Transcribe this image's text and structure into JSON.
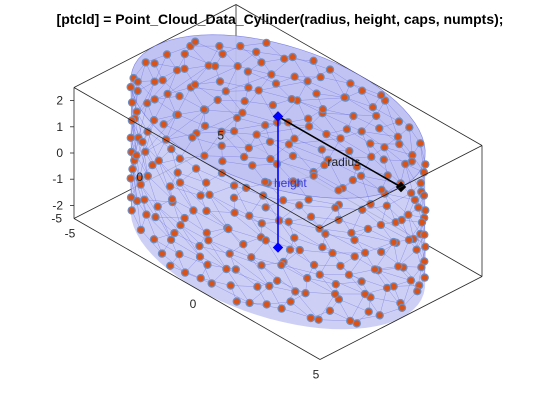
{
  "chart_data": {
    "type": "scatter3d",
    "title": "[ptcld] = Point_Cloud_Data_Cylinder(radius, height, caps, numpts);",
    "xlabel": "",
    "ylabel": "",
    "zlabel": "",
    "xlim": [
      -5,
      5
    ],
    "ylim": [
      -5,
      5
    ],
    "zlim": [
      -2.5,
      2.5
    ],
    "x_ticks": [
      "-5",
      "0",
      "5"
    ],
    "y_ticks": [
      "-5",
      "0",
      "5"
    ],
    "z_ticks": [
      "-2",
      "-1",
      "0",
      "1",
      "2"
    ],
    "grid": false,
    "box": true,
    "surface": {
      "shape": "cylinder",
      "radius": 5,
      "z_min": -2.5,
      "z_max": 2.5,
      "caps": true
    },
    "markers": {
      "count_approx": 300,
      "face_color": "#d95319",
      "edge_color": "#6b8ec7"
    },
    "annotations": [
      {
        "label": "radius",
        "from": [
          0,
          0,
          2.5
        ],
        "to": [
          5,
          0,
          2.5
        ]
      },
      {
        "label": "height",
        "from": [
          0,
          0,
          2.5
        ],
        "to": [
          0,
          0,
          -2.5
        ]
      }
    ],
    "view": {
      "azimuth_deg": -37.5,
      "elevation_deg": 30
    },
    "colors": {
      "surface_fill": "#c4c8f2",
      "mesh": "#5b61dd",
      "marker_face": "#d95319",
      "marker_edge": "#6b8ec7",
      "annotation_radius": "#000000",
      "annotation_height": "#0000ff",
      "axes": "#262626"
    }
  }
}
